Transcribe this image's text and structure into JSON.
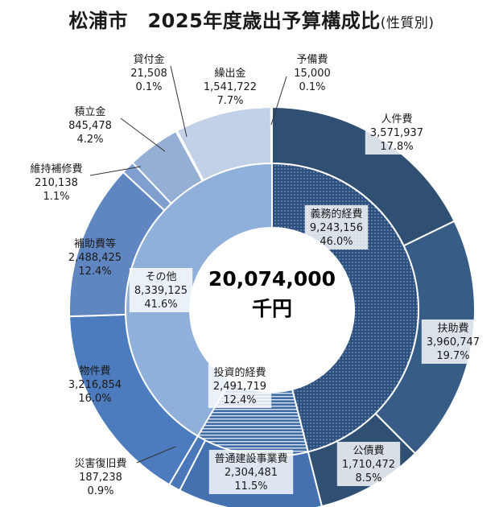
{
  "title": {
    "main": "松浦市　2025年度歳出予算構成比",
    "sub": "(性質別)"
  },
  "chart_data": {
    "type": "pie",
    "title": "松浦市　2025年度歳出予算構成比(性質別)",
    "center_total": "20,074,000",
    "center_unit": "千円",
    "outer_ring": [
      {
        "name": "人件費",
        "value": 3571937,
        "value_label": "3,571,937",
        "percent": "17.8%",
        "color": "#2f4f73"
      },
      {
        "name": "扶助費",
        "value": 3960747,
        "value_label": "3,960,747",
        "percent": "19.7%",
        "color": "#375d86"
      },
      {
        "name": "公債費",
        "value": 1710472,
        "value_label": "1,710,472",
        "percent": "8.5%",
        "color": "#2f4f73"
      },
      {
        "name": "普通建設事業費",
        "value": 2304481,
        "value_label": "2,304,481",
        "percent": "11.5%",
        "color": "#4472b0"
      },
      {
        "name": "災害復旧費",
        "value": 187238,
        "value_label": "187,238",
        "percent": "0.9%",
        "color": "#4a78b8"
      },
      {
        "name": "物件費",
        "value": 3216854,
        "value_label": "3,216,854",
        "percent": "16.0%",
        "color": "#4c7cbd"
      },
      {
        "name": "補助費等",
        "value": 2488425,
        "value_label": "2,488,425",
        "percent": "12.4%",
        "color": "#6086c2"
      },
      {
        "name": "維持補修費",
        "value": 210138,
        "value_label": "210,138",
        "percent": "1.1%",
        "color": "#7f9fd0"
      },
      {
        "name": "積立金",
        "value": 845478,
        "value_label": "845,478",
        "percent": "4.2%",
        "color": "#95aed4"
      },
      {
        "name": "貸付金",
        "value": 21508,
        "value_label": "21,508",
        "percent": "0.1%",
        "color": "#a3b9dc"
      },
      {
        "name": "繰出金",
        "value": 1541722,
        "value_label": "1,541,722",
        "percent": "7.7%",
        "color": "#c2d1e8"
      },
      {
        "name": "予備費",
        "value": 15000,
        "value_label": "15,000",
        "percent": "0.1%",
        "color": "#d5e0ef"
      }
    ],
    "inner_ring": [
      {
        "name": "義務的経費",
        "value": 9243156,
        "value_label": "9,243,156",
        "percent": "46.0%",
        "color": "#2b4f7e",
        "pattern": "dots"
      },
      {
        "name": "投資的経費",
        "value": 2491719,
        "value_label": "2,491,719",
        "percent": "12.4%",
        "color": "#3f6ca8",
        "pattern": "hlines"
      },
      {
        "name": "その他",
        "value": 8339125,
        "value_label": "8,339,125",
        "percent": "41.6%",
        "color": "#8fb0da",
        "pattern": "none"
      }
    ]
  }
}
